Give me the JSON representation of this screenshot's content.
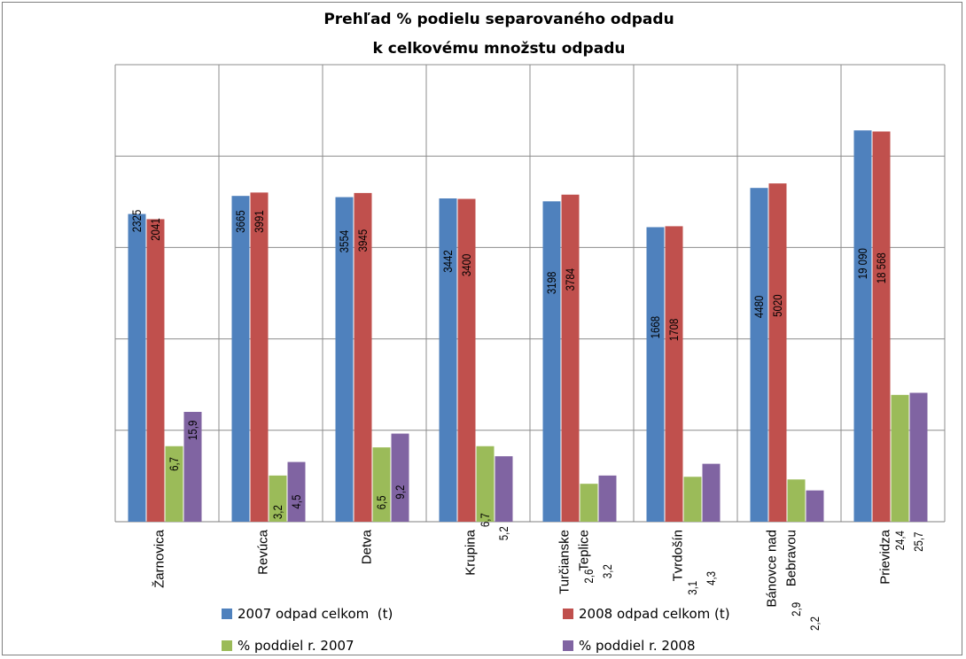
{
  "chart_data": {
    "type": "bar",
    "title": [
      "Prehľad % podielu separovaného odpadu",
      "k celkovému množstu odpadu"
    ],
    "categories": [
      [
        "Žarnovica"
      ],
      [
        "Revúca"
      ],
      [
        "Detva"
      ],
      [
        "Krupina"
      ],
      [
        "Turčianske",
        "Teplice"
      ],
      [
        "Tvrdošín"
      ],
      [
        "Bánovce nad",
        "Bebravou"
      ],
      [
        "Prievidza"
      ]
    ],
    "series": [
      {
        "name": "2007 odpad celkom  (t)",
        "color": "#4f81bd",
        "values": [
          2325,
          3665,
          3554,
          3442,
          3198,
          1668,
          4480,
          19090
        ],
        "labels": [
          "2325",
          "3665",
          "3554",
          "3442",
          "3198",
          "1668",
          "4480",
          "19 090"
        ]
      },
      {
        "name": "2008 odpad celkom (t)",
        "color": "#c0504d",
        "values": [
          2041,
          3991,
          3945,
          3400,
          3784,
          1708,
          5020,
          18568
        ],
        "labels": [
          "2041",
          "3991",
          "3945",
          "3400",
          "3784",
          "1708",
          "5020",
          "18 568"
        ]
      },
      {
        "name": "% poddiel r. 2007",
        "color": "#9bbb59",
        "values": [
          6.7,
          3.2,
          6.5,
          6.7,
          2.6,
          3.1,
          2.9,
          24.4
        ],
        "labels": [
          "6,7",
          "3,2",
          "6,5",
          "6,7",
          "2,6",
          "3,1",
          "2,9",
          "24,4"
        ]
      },
      {
        "name": "% poddiel r. 2008",
        "color": "#8064a2",
        "values": [
          15.9,
          4.5,
          9.2,
          5.2,
          3.2,
          4.3,
          2.2,
          25.7
        ],
        "labels": [
          "15,9",
          "4,5",
          "9,2",
          "5,2",
          "3,2",
          "4,3",
          "2,2",
          "25,7"
        ]
      }
    ],
    "yscale": "log",
    "ylim": [
      1,
      100000
    ],
    "grid": true,
    "legend_position": "bottom"
  }
}
